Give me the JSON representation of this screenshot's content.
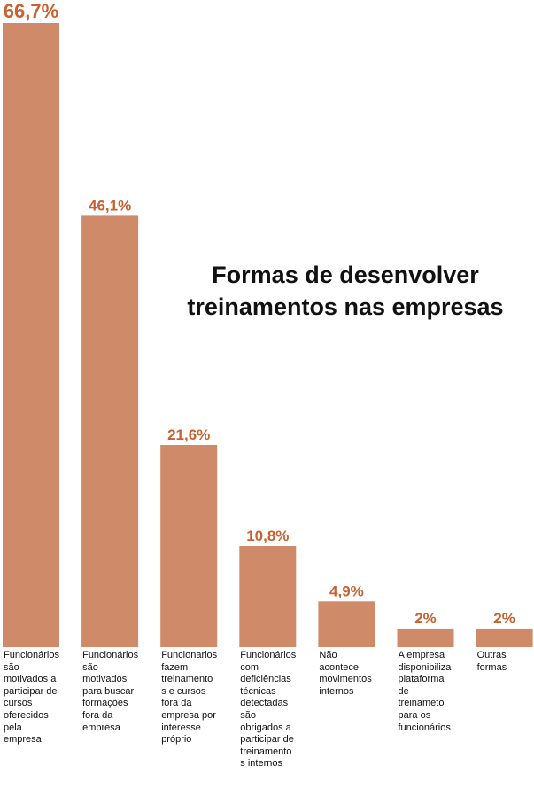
{
  "chart_data": {
    "type": "bar",
    "title_lines": [
      "Formas de desenvolver",
      "treinamentos nas empresas"
    ],
    "categories": [
      "Funcionários\nsão\nmotivados a\nparticipar de\ncursos\noferecidos\npela\nempresa",
      "Funcionários\nsão\nmotivados\npara buscar\nformações\nfora da\nempresa",
      "Funcionarios\nfazem\ntreinamento\ns e cursos\nfora da\nempresa por\ninteresse\npróprio",
      "Funcionários\ncom\ndeficiências\ntécnicas\ndetectadas\nsão\nobrigados a\nparticipar de\ntreinamento\ns internos",
      "Não\nacontece\nmovimentos\ninternos",
      "A empresa\ndisponibiliza\nplataforma\nde\ntreinameto\npara os\nfuncionários",
      "Outras\nformas"
    ],
    "values": [
      66.7,
      46.1,
      21.6,
      10.8,
      4.9,
      2,
      2
    ],
    "value_labels": [
      "66,7%",
      "46,1%",
      "21,6%",
      "10,8%",
      "4,9%",
      "2%",
      "2%"
    ],
    "ylim": [
      0,
      66.7
    ],
    "grid": false,
    "legend": "none",
    "bar_color": "#cf8a69",
    "value_label_color": "#c8612f"
  }
}
